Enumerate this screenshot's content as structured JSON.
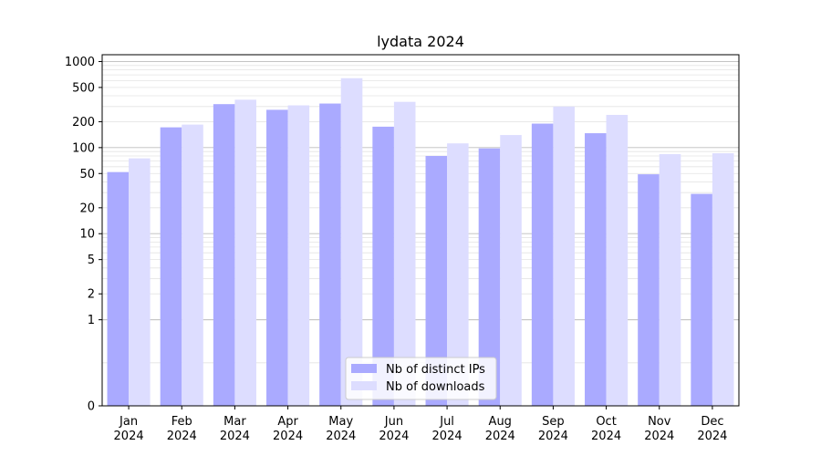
{
  "chart_data": {
    "type": "bar",
    "title": "lydata 2024",
    "xlabel": "",
    "ylabel": "",
    "yscale": "symlog",
    "ylim": [
      0,
      1200
    ],
    "categories": [
      {
        "month": "Jan",
        "year": "2024"
      },
      {
        "month": "Feb",
        "year": "2024"
      },
      {
        "month": "Mar",
        "year": "2024"
      },
      {
        "month": "Apr",
        "year": "2024"
      },
      {
        "month": "May",
        "year": "2024"
      },
      {
        "month": "Jun",
        "year": "2024"
      },
      {
        "month": "Jul",
        "year": "2024"
      },
      {
        "month": "Aug",
        "year": "2024"
      },
      {
        "month": "Sep",
        "year": "2024"
      },
      {
        "month": "Oct",
        "year": "2024"
      },
      {
        "month": "Nov",
        "year": "2024"
      },
      {
        "month": "Dec",
        "year": "2024"
      }
    ],
    "yticks": [
      {
        "value": 0,
        "label": "0"
      },
      {
        "value": 1,
        "label": "1"
      },
      {
        "value": 2,
        "label": "2"
      },
      {
        "value": 5,
        "label": "5"
      },
      {
        "value": 10,
        "label": "10"
      },
      {
        "value": 20,
        "label": "20"
      },
      {
        "value": 50,
        "label": "50"
      },
      {
        "value": 100,
        "label": "100"
      },
      {
        "value": 200,
        "label": "200"
      },
      {
        "value": 500,
        "label": "500"
      },
      {
        "value": 1000,
        "label": "1000"
      }
    ],
    "series": [
      {
        "name": "Nb of distinct IPs",
        "color": "#aaaaff",
        "values": [
          52,
          172,
          320,
          275,
          325,
          175,
          80,
          98,
          190,
          147,
          49,
          29
        ]
      },
      {
        "name": "Nb of downloads",
        "color": "#ddddff",
        "values": [
          75,
          185,
          360,
          310,
          640,
          340,
          112,
          140,
          300,
          240,
          84,
          86
        ]
      }
    ],
    "legend": {
      "placement": "lower-center"
    },
    "grid": true
  }
}
